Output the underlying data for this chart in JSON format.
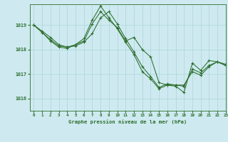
{
  "title": "Graphe pression niveau de la mer (hPa)",
  "background_color": "#ceeaf0",
  "grid_color": "#b0d8de",
  "line_color": "#2d6e2d",
  "xlim": [
    -0.5,
    23
  ],
  "ylim": [
    1015.5,
    1019.85
  ],
  "yticks": [
    1016,
    1017,
    1018,
    1019
  ],
  "xticks": [
    0,
    1,
    2,
    3,
    4,
    5,
    6,
    7,
    8,
    9,
    10,
    11,
    12,
    13,
    14,
    15,
    16,
    17,
    18,
    19,
    20,
    21,
    22,
    23
  ],
  "series1": [
    1019.0,
    1018.75,
    1018.5,
    1018.2,
    1018.1,
    1018.15,
    1018.3,
    1018.65,
    1019.3,
    1019.55,
    1019.05,
    1018.45,
    1017.9,
    1017.3,
    1016.9,
    1016.45,
    1016.6,
    1016.55,
    1016.5,
    1017.2,
    1017.05,
    1017.35,
    1017.5,
    1017.35
  ],
  "series2": [
    1019.0,
    1018.7,
    1018.35,
    1018.1,
    1018.05,
    1018.2,
    1018.45,
    1019.2,
    1019.78,
    1019.3,
    1018.85,
    1018.3,
    1017.8,
    1017.1,
    1016.8,
    1016.4,
    1016.55,
    1016.55,
    1016.55,
    1017.1,
    1016.95,
    1017.3,
    1017.5,
    1017.35
  ],
  "series3": [
    1019.0,
    1018.7,
    1018.4,
    1018.15,
    1018.1,
    1018.2,
    1018.35,
    1019.05,
    1019.55,
    1019.2,
    1018.9,
    1018.35,
    1018.5,
    1018.0,
    1017.7,
    1016.65,
    1016.55,
    1016.5,
    1016.25,
    1017.45,
    1017.15,
    1017.55,
    1017.5,
    1017.4
  ]
}
